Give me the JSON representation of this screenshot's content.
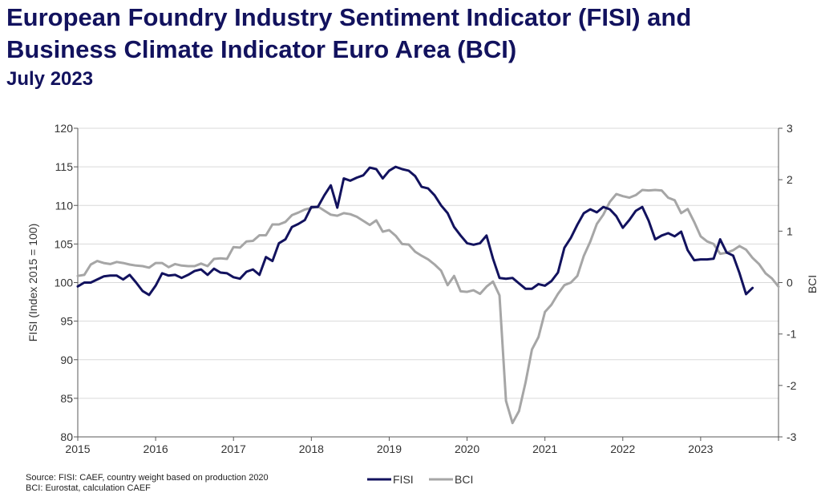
{
  "header": {
    "title_line1": "European Foundry Industry Sentiment Indicator (FISI) and",
    "title_line2": "Business Climate Indicator Euro Area (BCI)",
    "subtitle": "July 2023"
  },
  "footer": {
    "source_line1": "Source: FISI: CAEF, country weight based on production 2020",
    "source_line2": "BCI: Eurostat, calculation CAEF"
  },
  "colors": {
    "fisi": "#12125e",
    "bci": "#a6a6a6",
    "grid": "#d9d9d9",
    "axis": "#595959"
  },
  "chart_data": {
    "type": "line",
    "xlabel": "",
    "ylabel": "FISI (Index 2015 = 100)",
    "y2label": "BCI",
    "x_ticks": [
      "2015",
      "2016",
      "2017",
      "2018",
      "2019",
      "2020",
      "2021",
      "2022",
      "2023"
    ],
    "xlim": [
      "2015-01",
      "2024-01"
    ],
    "ylim": [
      80,
      120
    ],
    "y_ticks": [
      "80",
      "85",
      "90",
      "95",
      "100",
      "105",
      "110",
      "115",
      "120"
    ],
    "y2lim": [
      -3,
      3
    ],
    "y2_ticks": [
      "-3",
      "-2",
      "-1",
      "0",
      "1",
      "2",
      "3"
    ],
    "grid": true,
    "legend_position": "bottom",
    "start_month": "2015-01",
    "series": [
      {
        "name": "FISI",
        "axis": "left",
        "values": [
          99.5,
          100.0,
          100.0,
          100.4,
          100.8,
          100.9,
          100.9,
          100.4,
          101.0,
          100.0,
          98.9,
          98.4,
          99.6,
          101.2,
          100.9,
          101.0,
          100.6,
          101.0,
          101.5,
          101.7,
          101.0,
          101.8,
          101.3,
          101.2,
          100.7,
          100.5,
          101.4,
          101.7,
          101.0,
          103.3,
          102.8,
          105.1,
          105.6,
          107.2,
          107.6,
          108.1,
          109.8,
          109.8,
          111.3,
          112.6,
          109.7,
          113.5,
          113.2,
          113.6,
          113.9,
          114.9,
          114.7,
          113.5,
          114.5,
          115.0,
          114.7,
          114.5,
          113.8,
          112.4,
          112.2,
          111.3,
          110.0,
          109.0,
          107.2,
          106.1,
          105.1,
          104.9,
          105.1,
          106.1,
          103.1,
          100.6,
          100.5,
          100.6,
          99.9,
          99.2,
          99.2,
          99.8,
          99.6,
          100.2,
          101.3,
          104.5,
          105.8,
          107.5,
          109.0,
          109.5,
          109.1,
          109.8,
          109.5,
          108.6,
          107.1,
          108.1,
          109.3,
          109.8,
          108.0,
          105.6,
          106.1,
          106.4,
          106.0,
          106.6,
          104.2,
          102.9,
          103.0,
          103.0,
          103.1,
          105.6,
          103.9,
          103.5,
          101.2,
          98.5,
          99.3
        ]
      },
      {
        "name": "BCI",
        "axis": "right",
        "values": [
          0.13,
          0.15,
          0.35,
          0.42,
          0.38,
          0.36,
          0.4,
          0.38,
          0.35,
          0.33,
          0.32,
          0.29,
          0.38,
          0.38,
          0.3,
          0.36,
          0.33,
          0.32,
          0.32,
          0.37,
          0.32,
          0.46,
          0.47,
          0.46,
          0.69,
          0.68,
          0.8,
          0.81,
          0.92,
          0.92,
          1.13,
          1.13,
          1.18,
          1.31,
          1.36,
          1.42,
          1.45,
          1.48,
          1.4,
          1.32,
          1.3,
          1.35,
          1.33,
          1.28,
          1.2,
          1.12,
          1.21,
          0.99,
          1.02,
          0.91,
          0.75,
          0.74,
          0.6,
          0.52,
          0.45,
          0.35,
          0.23,
          -0.05,
          0.13,
          -0.17,
          -0.18,
          -0.15,
          -0.22,
          -0.08,
          0.02,
          -0.25,
          -2.3,
          -2.73,
          -2.5,
          -1.95,
          -1.3,
          -1.06,
          -0.57,
          -0.43,
          -0.22,
          -0.05,
          0.0,
          0.13,
          0.52,
          0.8,
          1.14,
          1.32,
          1.57,
          1.72,
          1.68,
          1.65,
          1.7,
          1.8,
          1.79,
          1.8,
          1.79,
          1.65,
          1.6,
          1.35,
          1.43,
          1.18,
          0.9,
          0.8,
          0.75,
          0.56,
          0.58,
          0.63,
          0.71,
          0.64,
          0.48,
          0.36,
          0.18,
          0.08,
          -0.08
        ]
      }
    ]
  }
}
